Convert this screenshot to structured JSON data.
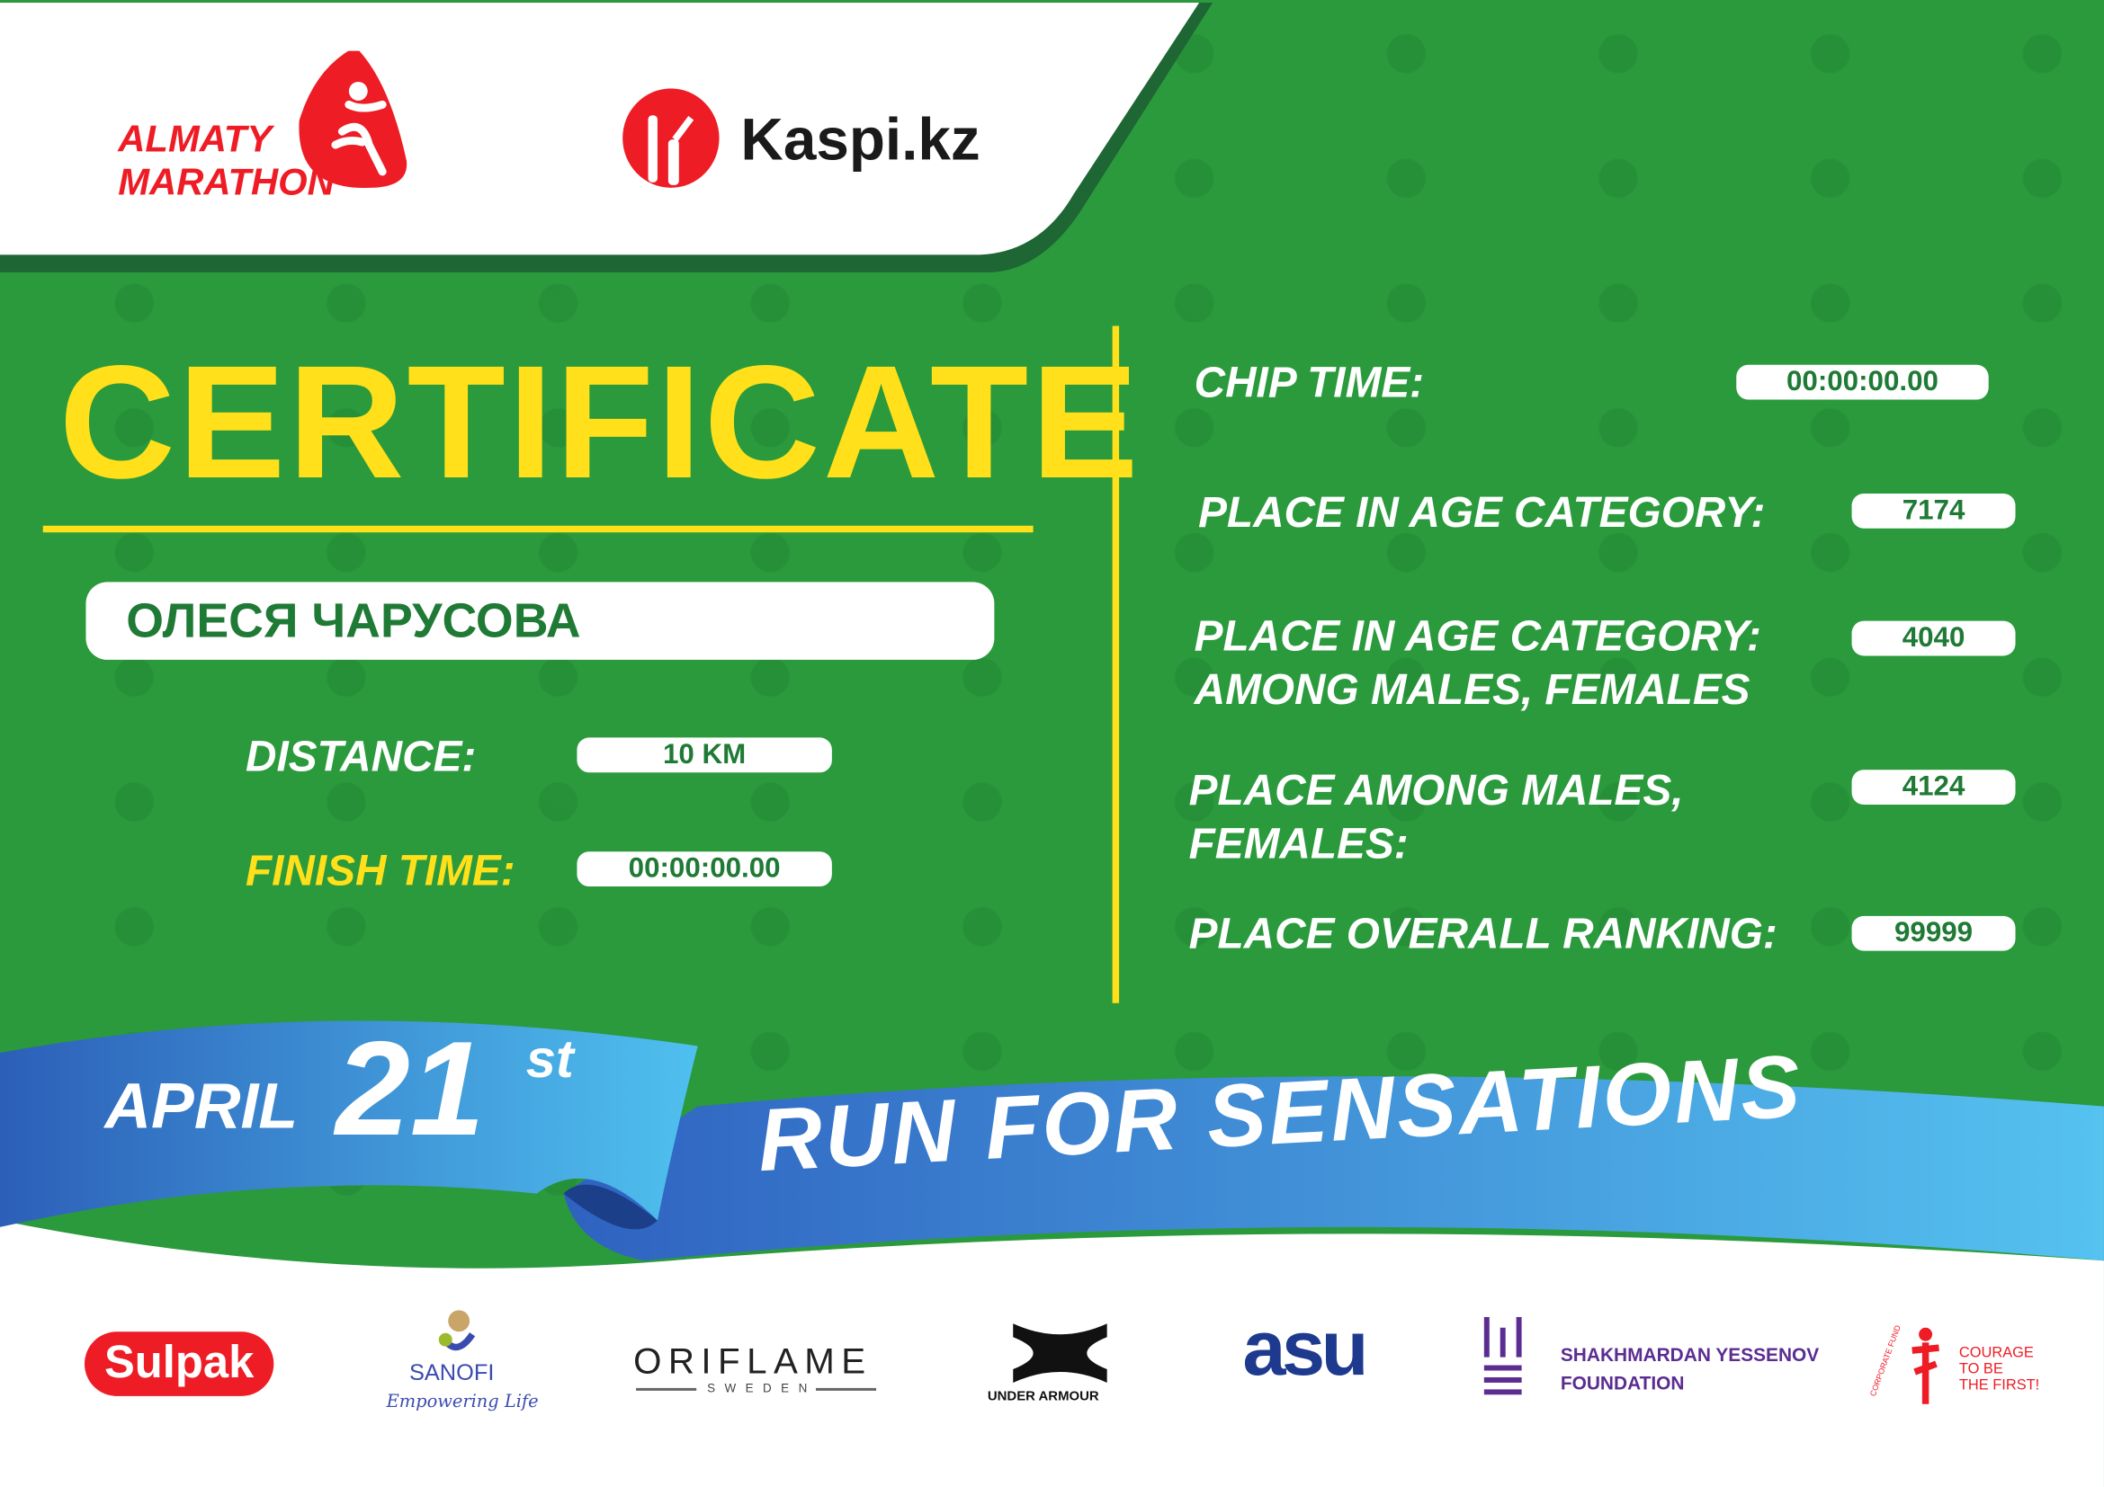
{
  "header": {
    "event_logo": {
      "line1": "ALMATY",
      "line2": "MARATHON",
      "color": "#ee1c25"
    },
    "sponsor_logo": {
      "text": "Kaspi.kz",
      "color": "#ee1c25"
    }
  },
  "certificate": {
    "title": "CERTIFICATE",
    "participant_name": "ОЛЕСЯ ЧАРУСОВА",
    "distance_label": "DISTANCE:",
    "distance_value": "10 KM",
    "finish_time_label": "FINISH TIME:",
    "finish_time_value": "00:00:00.00",
    "chip_time_label": "CHIP TIME:",
    "chip_time_value": "00:00:00.00",
    "age_category_label": "PLACE IN AGE CATEGORY:",
    "age_category_value": "7174",
    "age_category_gender_label_1": "PLACE IN AGE CATEGORY:",
    "age_category_gender_label_2": "AMONG MALES, FEMALES",
    "age_category_gender_value": "4040",
    "gender_label_1": "PLACE AMONG MALES,",
    "gender_label_2": "FEMALES:",
    "gender_value": "4124",
    "overall_label": "PLACE OVERALL RANKING:",
    "overall_value": "99999"
  },
  "banner": {
    "date_month": "APRIL",
    "date_day": "21",
    "date_suffix": "st",
    "slogan": "RUN FOR SENSATIONS"
  },
  "sponsors": {
    "sulpak": "Sulpak",
    "sanofi": "SANOFI",
    "sanofi_tagline": "Empowering Life",
    "oriflame": "ORIFLAME",
    "oriflame_sub": "SWEDEN",
    "under_armour": "UNDER ARMOUR",
    "asu": "asu",
    "yessenov_1": "SHAKHMARDAN YESSENOV",
    "yessenov_2": "FOUNDATION",
    "courage_1": "COURAGE",
    "courage_2": "TO BE",
    "courage_3": "THE FIRST!",
    "courage_arc": "CORPORATE FUND"
  },
  "colors": {
    "green": "#2a9a3c",
    "dark_green": "#1e6634",
    "yellow": "#ffe01a",
    "blue": "#3a7fd0",
    "red": "#ee1c25"
  }
}
